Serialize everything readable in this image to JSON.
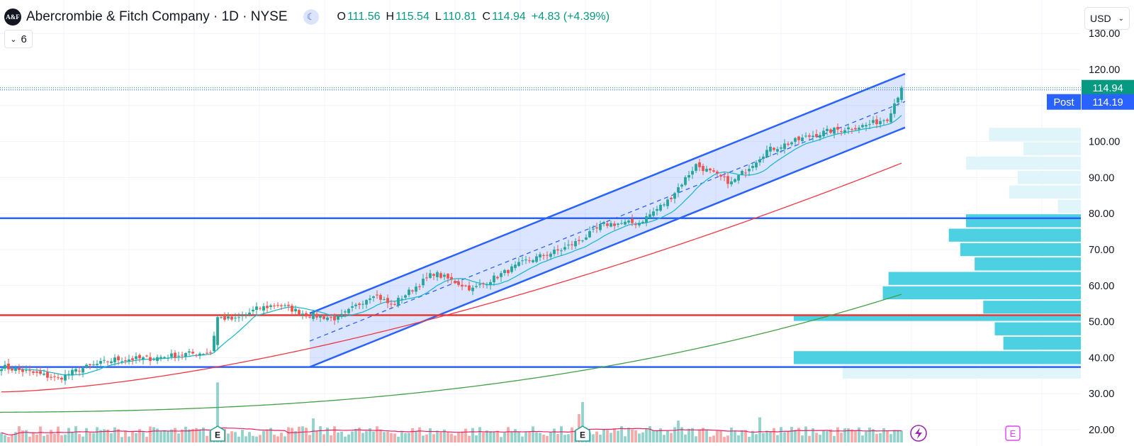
{
  "header": {
    "logo_text": "A&F",
    "symbol_title": "Abercrombie & Fitch Company · 1D · NYSE",
    "ohlc": [
      {
        "label": "O",
        "value": "111.56"
      },
      {
        "label": "H",
        "value": "115.54"
      },
      {
        "label": "L",
        "value": "110.81"
      },
      {
        "label": "C",
        "value": "114.94"
      }
    ],
    "change": "+4.83 (+4.39%)",
    "session_icon": "moon-icon"
  },
  "indicator_toggle": {
    "count": "6",
    "icon": "chevron-down-icon"
  },
  "currency_selector": {
    "value": "USD",
    "icon": "chevron-down-icon"
  },
  "price_scale": {
    "ticks": [
      "130.00",
      "120.00",
      "100.00",
      "90.00",
      "80.00",
      "70.00",
      "60.00",
      "50.00",
      "40.00",
      "30.00",
      "20.00"
    ],
    "last_price": "114.94",
    "post_label": "Post",
    "post_price": "114.19"
  },
  "markers": {
    "earnings_label": "E",
    "lightning_icon": "lightning-icon"
  },
  "colors": {
    "up": "#26a69a",
    "down": "#ef5350",
    "channel": "#2962ff",
    "channel_fill": "#2962ff",
    "ma_fast": "#22b8cc",
    "ma_mid": "#f23645",
    "ma_slow": "#43a047",
    "volume_ma": "#e91e63",
    "vp_bar": "#4dd0e1",
    "vp_bar_light": "#dff5f9",
    "support_red": "#e53935",
    "support_blue": "#2962ff",
    "last_price_bg": "#089981",
    "post_bg": "#2962ff"
  },
  "chart_data": {
    "type": "candlestick",
    "y_range": [
      18,
      132
    ],
    "horizontal_levels": [
      {
        "price": 78.7,
        "color": "support_blue"
      },
      {
        "price": 51.8,
        "color": "support_red"
      },
      {
        "price": 37.4,
        "color": "support_blue"
      }
    ],
    "channel": {
      "start": {
        "bar": 87,
        "upper": 52.3,
        "mid": 44.6,
        "lower": 37.4
      },
      "end": {
        "bar": 255,
        "upper": 118.8,
        "mid": 111.1,
        "lower": 103.9
      }
    },
    "key_closes": [
      {
        "bar": 0,
        "close": 37.5
      },
      {
        "bar": 10,
        "close": 35.5
      },
      {
        "bar": 16,
        "close": 34.2
      },
      {
        "bar": 22,
        "close": 36.8
      },
      {
        "bar": 32,
        "close": 39.5
      },
      {
        "bar": 42,
        "close": 39.8
      },
      {
        "bar": 52,
        "close": 41.0
      },
      {
        "bar": 59,
        "close": 41.5
      },
      {
        "bar": 61,
        "close": 51.2
      },
      {
        "bar": 66,
        "close": 50.5
      },
      {
        "bar": 72,
        "close": 53.5
      },
      {
        "bar": 78,
        "close": 54.8
      },
      {
        "bar": 86,
        "close": 52.0
      },
      {
        "bar": 95,
        "close": 50.8
      },
      {
        "bar": 105,
        "close": 57.8
      },
      {
        "bar": 110,
        "close": 54.5
      },
      {
        "bar": 122,
        "close": 63.5
      },
      {
        "bar": 133,
        "close": 59.0
      },
      {
        "bar": 148,
        "close": 66.8
      },
      {
        "bar": 158,
        "close": 70.0
      },
      {
        "bar": 164,
        "close": 73.0
      },
      {
        "bar": 170,
        "close": 77.0
      },
      {
        "bar": 180,
        "close": 77.5
      },
      {
        "bar": 188,
        "close": 83.5
      },
      {
        "bar": 196,
        "close": 93.5
      },
      {
        "bar": 206,
        "close": 88.5
      },
      {
        "bar": 216,
        "close": 97.5
      },
      {
        "bar": 228,
        "close": 101.5
      },
      {
        "bar": 234,
        "close": 103.0
      },
      {
        "bar": 244,
        "close": 104.5
      },
      {
        "bar": 250,
        "close": 106.5
      },
      {
        "bar": 254,
        "close": 114.94
      }
    ],
    "volume_spikes": [
      {
        "bar": 61,
        "scale": 5.5
      },
      {
        "bar": 164,
        "scale": 3.7
      },
      {
        "bar": 163,
        "scale": 2.6
      },
      {
        "bar": 88,
        "scale": 2.2
      },
      {
        "bar": 214,
        "scale": 2.3
      },
      {
        "bar": 191,
        "scale": 2.0
      }
    ],
    "earnings_bars": [
      61,
      164
    ],
    "volume_profile": [
      {
        "low": 100.0,
        "high": 104.0,
        "weight": 0.32,
        "light": true
      },
      {
        "low": 96.0,
        "high": 100.0,
        "weight": 0.2,
        "light": true
      },
      {
        "low": 92.0,
        "high": 96.0,
        "weight": 0.4,
        "light": true
      },
      {
        "low": 88.0,
        "high": 92.0,
        "weight": 0.22,
        "light": true
      },
      {
        "low": 84.0,
        "high": 88.0,
        "weight": 0.25,
        "light": true
      },
      {
        "low": 80.0,
        "high": 84.0,
        "weight": 0.08,
        "light": true
      },
      {
        "low": 76.0,
        "high": 80.0,
        "weight": 0.4,
        "light": false
      },
      {
        "low": 72.0,
        "high": 76.0,
        "weight": 0.46,
        "light": false
      },
      {
        "low": 68.0,
        "high": 72.0,
        "weight": 0.42,
        "light": false
      },
      {
        "low": 64.0,
        "high": 68.0,
        "weight": 0.37,
        "light": false
      },
      {
        "low": 60.0,
        "high": 64.0,
        "weight": 0.67,
        "light": false
      },
      {
        "low": 56.0,
        "high": 60.0,
        "weight": 0.69,
        "light": false
      },
      {
        "low": 52.0,
        "high": 56.0,
        "weight": 0.34,
        "light": false
      },
      {
        "low": 50.0,
        "high": 52.0,
        "weight": 1.0,
        "light": false
      },
      {
        "low": 46.0,
        "high": 50.0,
        "weight": 0.3,
        "light": false
      },
      {
        "low": 42.0,
        "high": 46.0,
        "weight": 0.27,
        "light": false
      },
      {
        "low": 38.0,
        "high": 42.0,
        "weight": 1.0,
        "light": false
      },
      {
        "low": 34.0,
        "high": 38.0,
        "weight": 0.83,
        "light": true
      }
    ]
  }
}
